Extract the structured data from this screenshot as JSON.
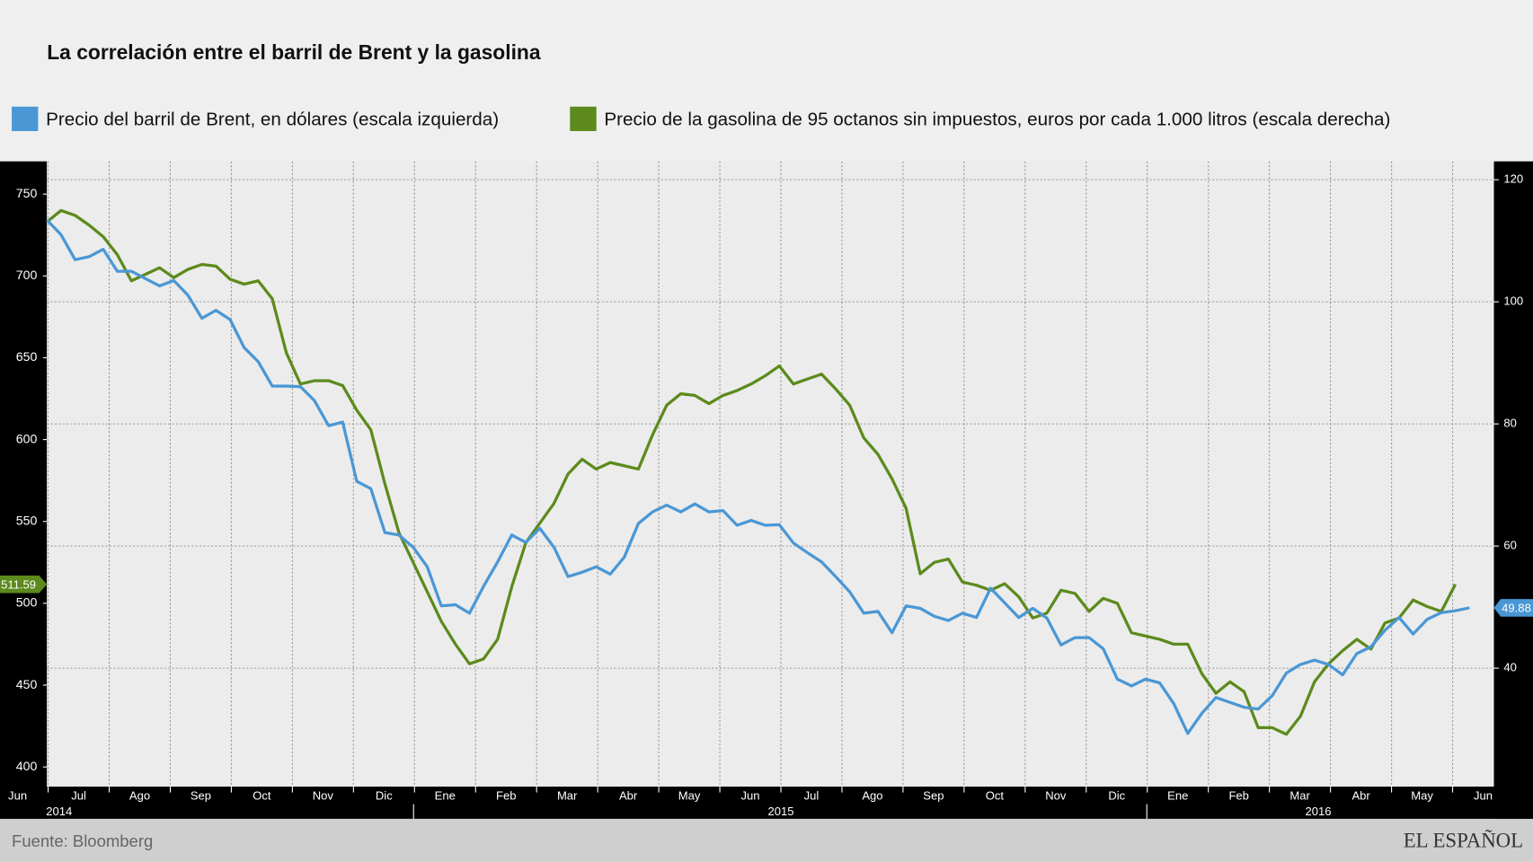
{
  "chart_data": {
    "type": "line",
    "title": "La correlación entre el barril de Brent y la gasolina",
    "series": [
      {
        "name": "Precio del barril de Brent, en dólares (escala izquierda)",
        "color": "#4a97d5",
        "axis": "y2",
        "values": [
          113.4,
          111.0,
          106.9,
          107.4,
          108.6,
          105.0,
          105.0,
          103.8,
          102.6,
          103.5,
          101.1,
          97.3,
          98.6,
          97.1,
          92.5,
          90.2,
          86.2,
          86.2,
          86.1,
          83.8,
          79.7,
          80.3,
          70.6,
          69.4,
          62.2,
          61.8,
          59.8,
          56.6,
          50.2,
          50.4,
          49.0,
          53.4,
          57.4,
          61.8,
          60.6,
          62.9,
          59.8,
          55.0,
          55.7,
          56.6,
          55.4,
          58.2,
          63.7,
          65.6,
          66.7,
          65.6,
          66.9,
          65.6,
          65.8,
          63.4,
          64.2,
          63.4,
          63.5,
          60.5,
          58.9,
          57.4,
          55.0,
          52.5,
          49.0,
          49.3,
          45.8,
          50.2,
          49.8,
          48.5,
          47.8,
          49.0,
          48.3,
          53.1,
          50.7,
          48.3,
          49.8,
          48.2,
          43.8,
          45.0,
          45.0,
          43.2,
          38.2,
          37.1,
          38.2,
          37.6,
          34.2,
          29.3,
          32.6,
          35.2,
          34.4,
          33.6,
          33.3,
          35.5,
          39.2,
          40.6,
          41.3,
          40.6,
          38.9,
          42.4,
          43.5,
          46.2,
          48.3,
          45.6,
          48.0,
          49.1,
          49.4,
          49.88
        ]
      },
      {
        "name": "Precio de la gasolina de 95 octanos sin impuestos, euros por cada 1.000 litros (escala derecha)",
        "color": "#5c8a1c",
        "axis": "y",
        "values": [
          733,
          740,
          737,
          731,
          724,
          713,
          697,
          701,
          705,
          699,
          704,
          707,
          706,
          698,
          695,
          697,
          686,
          653,
          634,
          636,
          636,
          633,
          618,
          606,
          573,
          543,
          525,
          507,
          489,
          475,
          463,
          466,
          478,
          510,
          537,
          549,
          561,
          579,
          588,
          582,
          586,
          584,
          582,
          603,
          621,
          628,
          627,
          622,
          627,
          630,
          634,
          639,
          645,
          634,
          637,
          640,
          631,
          621,
          601,
          591,
          576,
          558,
          518,
          525,
          527,
          513,
          511,
          508,
          512,
          504,
          491,
          494,
          508,
          506,
          495,
          503,
          500,
          482,
          480,
          478,
          475,
          475,
          457,
          445,
          452,
          446,
          424,
          424,
          420,
          431,
          452,
          463,
          471,
          478,
          472,
          488,
          491,
          502,
          498,
          495,
          511.59,
          null
        ]
      }
    ],
    "ylim": [
      388,
      770
    ],
    "yticks": [
      400,
      450,
      500,
      550,
      600,
      650,
      700,
      750
    ],
    "y2lim": [
      20.6,
      123
    ],
    "y2ticks": [
      40,
      60,
      80,
      100,
      120
    ],
    "months": [
      "Jun",
      "Jul",
      "Ago",
      "Sep",
      "Oct",
      "Nov",
      "Dic",
      "Ene",
      "Feb",
      "Mar",
      "Abr",
      "May",
      "Jun",
      "Jul",
      "Ago",
      "Sep",
      "Oct",
      "Nov",
      "Dic",
      "Ene",
      "Feb",
      "Mar",
      "Abr",
      "May",
      "Jun"
    ],
    "years": [
      "2014",
      "2015",
      "2016"
    ],
    "grid": true,
    "source": "Fuente: Bloomberg",
    "brand": "EL ESPAÑOL"
  }
}
